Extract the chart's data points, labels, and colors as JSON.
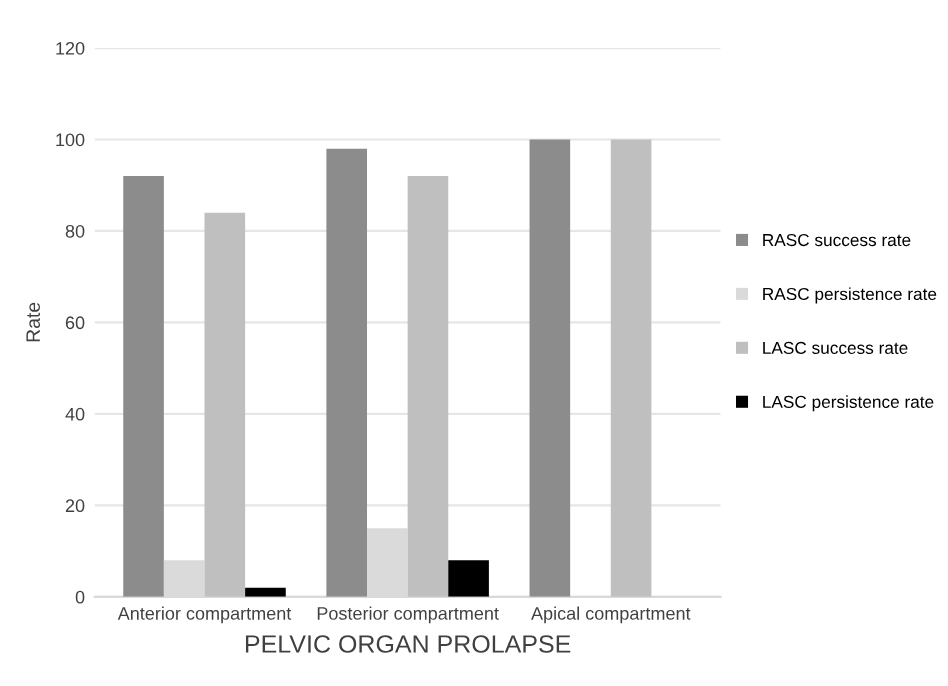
{
  "chart_data": {
    "type": "bar",
    "xlabel": "PELVIC ORGAN PROLAPSE",
    "ylabel": "Rate",
    "categories": [
      "Anterior compartment",
      "Posterior compartment",
      "Apical compartment"
    ],
    "series": [
      {
        "name": "RASC success rate",
        "color": "#8c8c8c",
        "values": [
          92,
          98,
          100
        ]
      },
      {
        "name": "RASC persistence rate",
        "color": "#dadada",
        "values": [
          8,
          15,
          0
        ]
      },
      {
        "name": "LASC success rate",
        "color": "#bfbfbf",
        "values": [
          84,
          92,
          100
        ]
      },
      {
        "name": "LASC persistence rate",
        "color": "#000000",
        "values": [
          2,
          8,
          0
        ]
      }
    ],
    "ylim": [
      0,
      120
    ],
    "yticks": [
      0,
      20,
      40,
      60,
      80,
      100,
      120
    ],
    "grid": "y",
    "legend": "right"
  }
}
